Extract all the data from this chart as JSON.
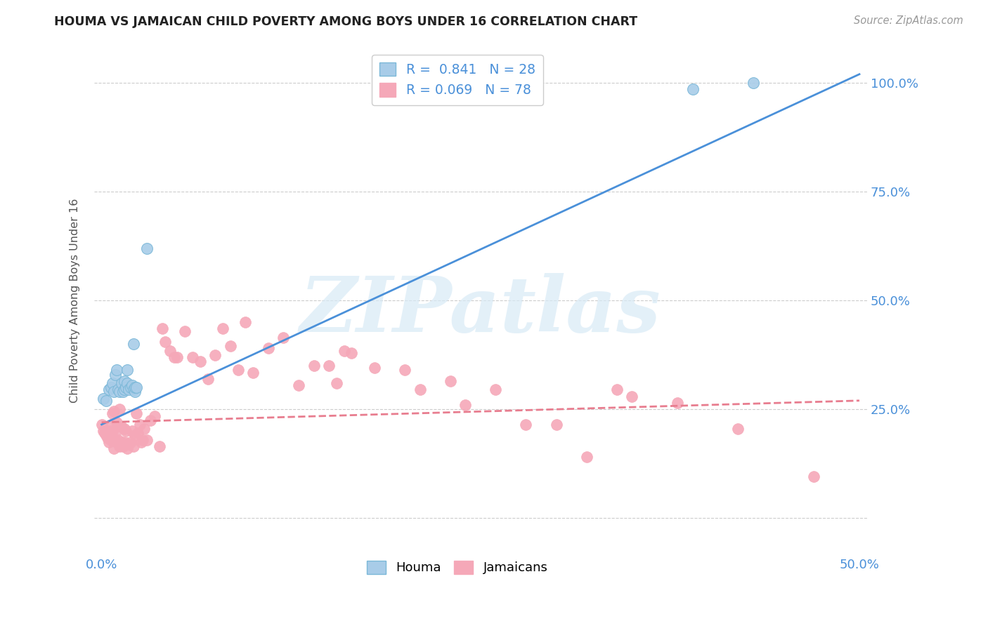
{
  "title": "HOUMA VS JAMAICAN CHILD POVERTY AMONG BOYS UNDER 16 CORRELATION CHART",
  "source": "Source: ZipAtlas.com",
  "ylabel": "Child Poverty Among Boys Under 16",
  "xlim": [
    -0.005,
    0.505
  ],
  "ylim": [
    -0.08,
    1.08
  ],
  "x_ticks": [
    0.0,
    0.1,
    0.2,
    0.3,
    0.4,
    0.5
  ],
  "x_tick_labels": [
    "0.0%",
    "",
    "",
    "",
    "",
    "50.0%"
  ],
  "y_ticks": [
    0.0,
    0.25,
    0.5,
    0.75,
    1.0
  ],
  "y_tick_labels": [
    "",
    "25.0%",
    "50.0%",
    "75.0%",
    "100.0%"
  ],
  "houma_color": "#A8CCE8",
  "jamaican_color": "#F5A8B8",
  "line_houma_color": "#4A90D9",
  "line_jamaican_color": "#E87D8F",
  "houma_R": 0.841,
  "houma_N": 28,
  "jamaican_R": 0.069,
  "jamaican_N": 78,
  "houma_scatter_x": [
    0.001,
    0.003,
    0.005,
    0.006,
    0.007,
    0.008,
    0.009,
    0.01,
    0.011,
    0.012,
    0.013,
    0.014,
    0.015,
    0.015,
    0.016,
    0.017,
    0.017,
    0.018,
    0.019,
    0.02,
    0.021,
    0.021,
    0.022,
    0.022,
    0.023,
    0.03,
    0.39,
    0.43
  ],
  "houma_scatter_y": [
    0.275,
    0.27,
    0.295,
    0.3,
    0.31,
    0.29,
    0.33,
    0.34,
    0.295,
    0.29,
    0.31,
    0.29,
    0.295,
    0.315,
    0.3,
    0.31,
    0.34,
    0.295,
    0.3,
    0.305,
    0.295,
    0.4,
    0.29,
    0.3,
    0.3,
    0.62,
    0.985,
    1.0
  ],
  "jamaican_scatter_x": [
    0.0,
    0.001,
    0.002,
    0.003,
    0.004,
    0.005,
    0.005,
    0.006,
    0.006,
    0.007,
    0.007,
    0.008,
    0.008,
    0.009,
    0.01,
    0.01,
    0.011,
    0.012,
    0.012,
    0.013,
    0.013,
    0.014,
    0.015,
    0.015,
    0.016,
    0.017,
    0.018,
    0.019,
    0.02,
    0.021,
    0.022,
    0.023,
    0.024,
    0.025,
    0.026,
    0.027,
    0.028,
    0.03,
    0.032,
    0.035,
    0.038,
    0.04,
    0.042,
    0.045,
    0.048,
    0.05,
    0.055,
    0.06,
    0.065,
    0.07,
    0.075,
    0.08,
    0.085,
    0.09,
    0.095,
    0.1,
    0.11,
    0.12,
    0.13,
    0.14,
    0.15,
    0.155,
    0.16,
    0.165,
    0.18,
    0.2,
    0.21,
    0.23,
    0.24,
    0.26,
    0.28,
    0.3,
    0.32,
    0.34,
    0.35,
    0.38,
    0.42,
    0.47
  ],
  "jamaican_scatter_y": [
    0.215,
    0.2,
    0.195,
    0.19,
    0.185,
    0.175,
    0.2,
    0.215,
    0.18,
    0.2,
    0.24,
    0.16,
    0.245,
    0.195,
    0.22,
    0.175,
    0.18,
    0.25,
    0.165,
    0.21,
    0.175,
    0.165,
    0.205,
    0.175,
    0.2,
    0.16,
    0.17,
    0.175,
    0.2,
    0.165,
    0.19,
    0.24,
    0.195,
    0.215,
    0.175,
    0.18,
    0.205,
    0.18,
    0.225,
    0.235,
    0.165,
    0.435,
    0.405,
    0.385,
    0.37,
    0.37,
    0.43,
    0.37,
    0.36,
    0.32,
    0.375,
    0.435,
    0.395,
    0.34,
    0.45,
    0.335,
    0.39,
    0.415,
    0.305,
    0.35,
    0.35,
    0.31,
    0.385,
    0.38,
    0.345,
    0.34,
    0.295,
    0.315,
    0.26,
    0.295,
    0.215,
    0.215,
    0.14,
    0.295,
    0.28,
    0.265,
    0.205,
    0.095
  ],
  "houma_line_x0": 0.0,
  "houma_line_y0": 0.215,
  "houma_line_x1": 0.5,
  "houma_line_y1": 1.02,
  "jamaican_line_x0": 0.0,
  "jamaican_line_y0": 0.22,
  "jamaican_line_x1": 0.5,
  "jamaican_line_y1": 0.27,
  "watermark_text": "ZIPatlas",
  "background_color": "#FFFFFF",
  "grid_color": "#CCCCCC"
}
